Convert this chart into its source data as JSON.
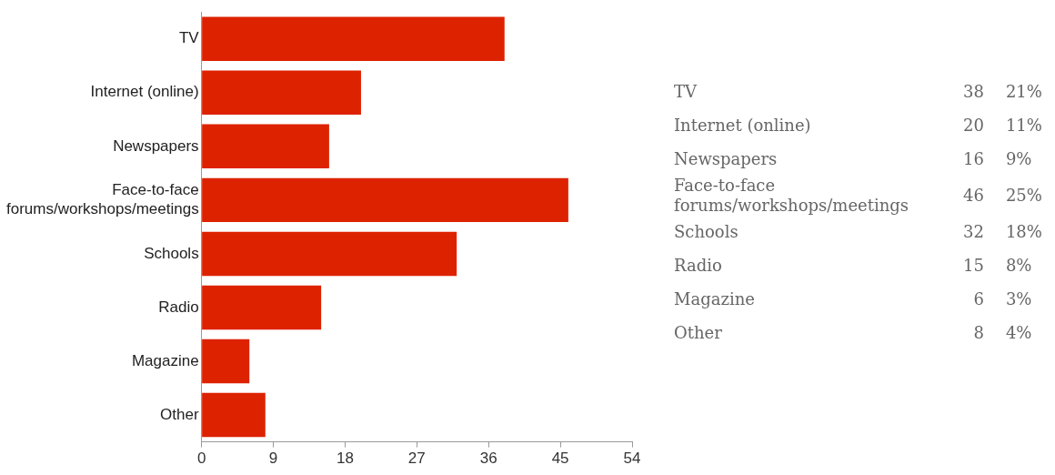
{
  "chart_data": {
    "type": "bar",
    "orientation": "horizontal",
    "categories": [
      "TV",
      "Internet (online)",
      "Newspapers",
      "Face-to-face forums/workshops/meetings",
      "Schools",
      "Radio",
      "Magazine",
      "Other"
    ],
    "values": [
      38,
      20,
      16,
      46,
      32,
      15,
      6,
      8
    ],
    "color": "#dd2200",
    "xlim": [
      0,
      54
    ],
    "xticks": [
      0,
      9,
      18,
      27,
      36,
      45,
      54
    ],
    "grid": false,
    "legend": false,
    "annotations": [
      "38",
      "21%",
      "20",
      "11%",
      "16",
      "9%",
      "46",
      "25%",
      "32",
      "18%",
      "15",
      "8%",
      "6",
      "3%",
      "8",
      "4%"
    ]
  }
}
